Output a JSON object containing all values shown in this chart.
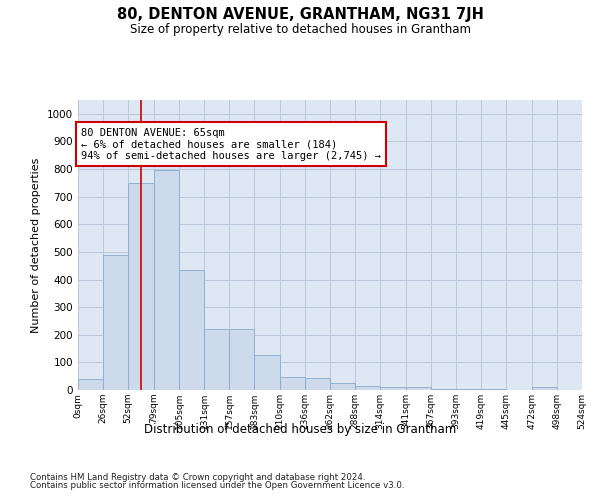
{
  "title": "80, DENTON AVENUE, GRANTHAM, NG31 7JH",
  "subtitle": "Size of property relative to detached houses in Grantham",
  "xlabel": "Distribution of detached houses by size in Grantham",
  "ylabel": "Number of detached properties",
  "bar_color": "#ccdaeb",
  "bar_edge_color": "#8aaac8",
  "grid_color": "#b8c8da",
  "background_color": "#dde8f4",
  "annotation_box_color": "#cc0000",
  "vline_color": "#cc0000",
  "vline_x": 65,
  "annotation_text": "80 DENTON AVENUE: 65sqm\n← 6% of detached houses are smaller (184)\n94% of semi-detached houses are larger (2,745) →",
  "bin_edges": [
    0,
    26,
    52,
    79,
    105,
    131,
    157,
    183,
    210,
    236,
    262,
    288,
    314,
    341,
    367,
    393,
    419,
    445,
    472,
    498,
    524
  ],
  "bar_heights": [
    40,
    490,
    750,
    795,
    435,
    220,
    220,
    125,
    48,
    42,
    25,
    14,
    10,
    10,
    2,
    5,
    2,
    0,
    10,
    0
  ],
  "ylim": [
    0,
    1050
  ],
  "yticks": [
    0,
    100,
    200,
    300,
    400,
    500,
    600,
    700,
    800,
    900,
    1000
  ],
  "footnote1": "Contains HM Land Registry data © Crown copyright and database right 2024.",
  "footnote2": "Contains public sector information licensed under the Open Government Licence v3.0."
}
